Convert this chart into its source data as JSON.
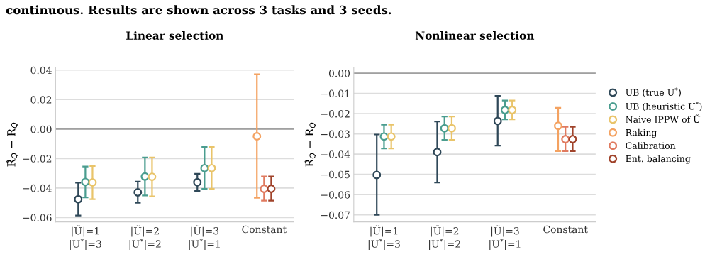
{
  "chart_data": [
    {
      "type": "scatter",
      "title": "Linear selection",
      "ylabel": "R̂$_{Q}$ − R$_{Q}$",
      "annotations": [
        "continuous. Results are shown across 3 tasks and 3 seeds."
      ],
      "categories": [
        "|Ũ|=1\n|U$^{*}$|=3",
        "|Ũ|=2\n|U$^{*}$|=2",
        "|Ũ|=3\n|U$^{*}$|=1",
        "Constant"
      ],
      "ylim": [
        -0.063,
        0.042
      ],
      "yticks": [
        {
          "value": -0.06,
          "label": "−0.06"
        },
        {
          "value": -0.04,
          "label": "−0.04"
        },
        {
          "value": -0.02,
          "label": "−0.02"
        },
        {
          "value": 0.0,
          "label": "0.00"
        },
        {
          "value": 0.02,
          "label": "0.02"
        },
        {
          "value": 0.04,
          "label": "0.04"
        }
      ],
      "grid": "y",
      "legend": false,
      "marker": "circle",
      "ref_lines": [
        {
          "axis": "y",
          "value": 0.0,
          "color": "#a0a0a0"
        }
      ],
      "series": [
        {
          "color": "#2f4858",
          "values": [
            -0.0476,
            -0.0429,
            -0.0361,
            null
          ],
          "errors": [
            [
              -0.0586,
              -0.0364
            ],
            [
              -0.05,
              -0.0356
            ],
            [
              -0.0419,
              -0.0304
            ],
            null
          ]
        },
        {
          "color": "#4a9d8f",
          "values": [
            -0.0359,
            -0.0322,
            -0.0265,
            null
          ],
          "errors": [
            [
              -0.0464,
              -0.0254
            ],
            [
              -0.0451,
              -0.0193
            ],
            [
              -0.0406,
              -0.0121
            ],
            null
          ]
        },
        {
          "color": "#e9c46a",
          "values": [
            -0.0362,
            -0.0324,
            -0.0265,
            null
          ],
          "errors": [
            [
              -0.0476,
              -0.0251
            ],
            [
              -0.0456,
              -0.0193
            ],
            [
              -0.0406,
              -0.0121
            ],
            null
          ]
        },
        {
          "color": "#f4a261",
          "values": [
            null,
            null,
            null,
            -0.0049
          ],
          "errors": [
            null,
            null,
            null,
            [
              -0.0466,
              0.0372
            ]
          ]
        },
        {
          "color": "#e07a5f",
          "values": [
            null,
            null,
            null,
            -0.0405
          ],
          "errors": [
            null,
            null,
            null,
            [
              -0.0485,
              -0.0322
            ]
          ]
        },
        {
          "color": "#a0432b",
          "values": [
            null,
            null,
            null,
            -0.0405
          ],
          "errors": [
            null,
            null,
            null,
            [
              -0.0485,
              -0.0322
            ]
          ]
        }
      ]
    },
    {
      "type": "scatter",
      "title": "Nonlinear selection",
      "ylabel": "R̂$_{Q}$ − R$_{Q}$",
      "categories": [
        "|Ũ|=1\n|U$^{*}$|=3",
        "|Ũ|=2\n|U$^{*}$|=2",
        "|Ũ|=3\n|U$^{*}$|=1",
        "Constant"
      ],
      "ylim": [
        -0.0735,
        0.003
      ],
      "yticks": [
        {
          "value": -0.07,
          "label": "−0.07"
        },
        {
          "value": -0.06,
          "label": "−0.06"
        },
        {
          "value": -0.05,
          "label": "−0.05"
        },
        {
          "value": -0.04,
          "label": "−0.04"
        },
        {
          "value": -0.03,
          "label": "−0.03"
        },
        {
          "value": -0.02,
          "label": "−0.02"
        },
        {
          "value": -0.01,
          "label": "−0.01"
        },
        {
          "value": 0.0,
          "label": "0.00"
        }
      ],
      "grid": "y",
      "legend": "right",
      "marker": "circle",
      "ref_lines": [
        {
          "axis": "y",
          "value": 0.0,
          "color": "#a0a0a0"
        }
      ],
      "series": [
        {
          "name": "UB (true U$^{*}$)",
          "color": "#2f4858",
          "values": [
            -0.0503,
            -0.039,
            -0.0236,
            null
          ],
          "errors": [
            [
              -0.07,
              -0.0303
            ],
            [
              -0.054,
              -0.0239
            ],
            [
              -0.0358,
              -0.0112
            ],
            null
          ]
        },
        {
          "name": "UB (heuristic U$^{*}$)",
          "color": "#4a9d8f",
          "values": [
            -0.0313,
            -0.0272,
            -0.0182,
            null
          ],
          "errors": [
            [
              -0.0372,
              -0.0254
            ],
            [
              -0.033,
              -0.0214
            ],
            [
              -0.0228,
              -0.0135
            ],
            null
          ]
        },
        {
          "name": "Naive IPPW of Ũ",
          "color": "#e9c46a",
          "values": [
            -0.0313,
            -0.0272,
            -0.0182,
            null
          ],
          "errors": [
            [
              -0.0372,
              -0.0254
            ],
            [
              -0.033,
              -0.0214
            ],
            [
              -0.0228,
              -0.0135
            ],
            null
          ]
        },
        {
          "name": "Raking",
          "color": "#f4a261",
          "values": [
            null,
            null,
            null,
            -0.026
          ],
          "errors": [
            null,
            null,
            null,
            [
              -0.0385,
              -0.0171
            ]
          ]
        },
        {
          "name": "Calibration",
          "color": "#e07a5f",
          "values": [
            null,
            null,
            null,
            -0.0326
          ],
          "errors": [
            null,
            null,
            null,
            [
              -0.0385,
              -0.0265
            ]
          ]
        },
        {
          "name": "Ent. balancing",
          "color": "#a0432b",
          "values": [
            null,
            null,
            null,
            -0.0326
          ],
          "errors": [
            null,
            null,
            null,
            [
              -0.0385,
              -0.0265
            ]
          ]
        }
      ]
    }
  ]
}
